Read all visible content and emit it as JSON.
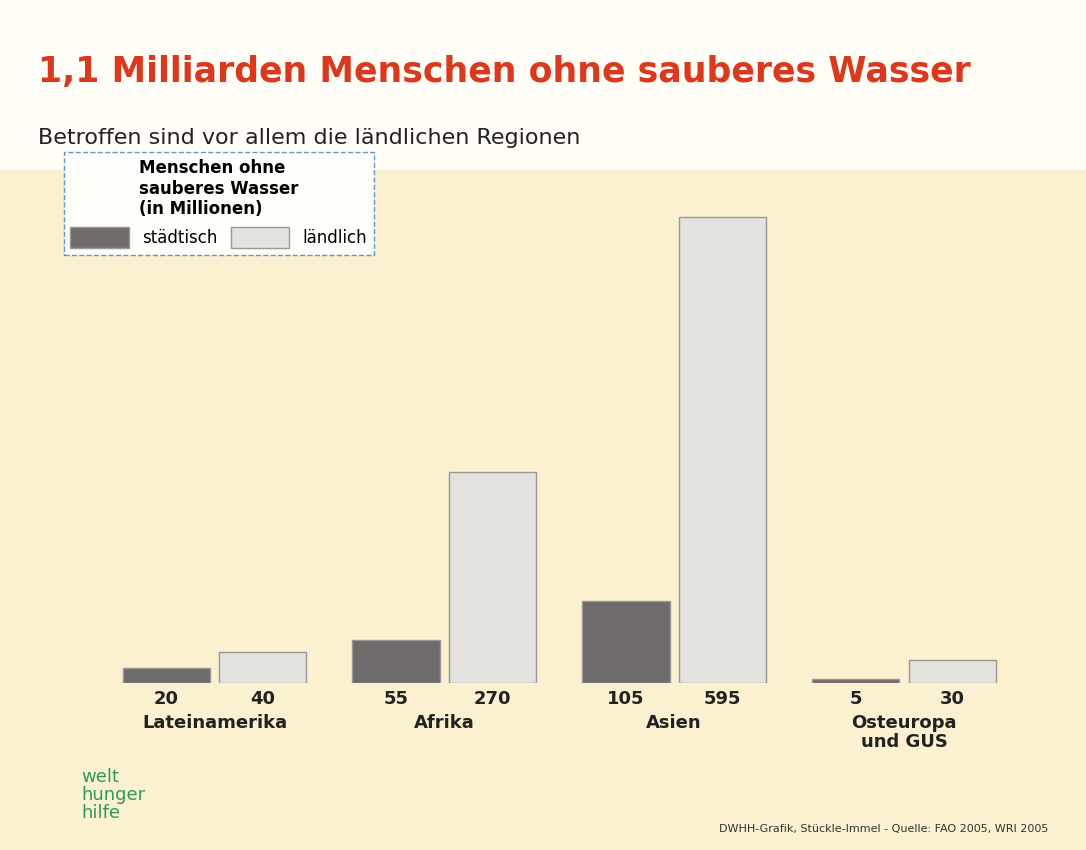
{
  "chart_data": {
    "type": "bar",
    "title": "1,1 Milliarden Menschen ohne sauberes Wasser",
    "subtitle": "Betroffen sind vor allem die ländlichen Regionen",
    "legend_title": "Menschen ohne\nsauberes Wasser\n(in Millionen)",
    "categories": [
      "Lateinamerika",
      "Afrika",
      "Asien",
      "Osteuropa\nund GUS"
    ],
    "series": [
      {
        "name": "städtisch",
        "color": "#6f6b6a",
        "values": [
          20,
          55,
          105,
          5
        ]
      },
      {
        "name": "ländlich",
        "color": "#e4e2de",
        "values": [
          40,
          270,
          595,
          30
        ]
      }
    ],
    "ylim": [
      0,
      650
    ],
    "data_labels": true,
    "tick_labels": false,
    "grid": false,
    "legend": "upper left",
    "annotations": [
      "welt\nhunger\nhilfe",
      "DWHH-Grafik, Stückle-Immel - Quelle: FAO 2005, WRI 2005"
    ]
  }
}
